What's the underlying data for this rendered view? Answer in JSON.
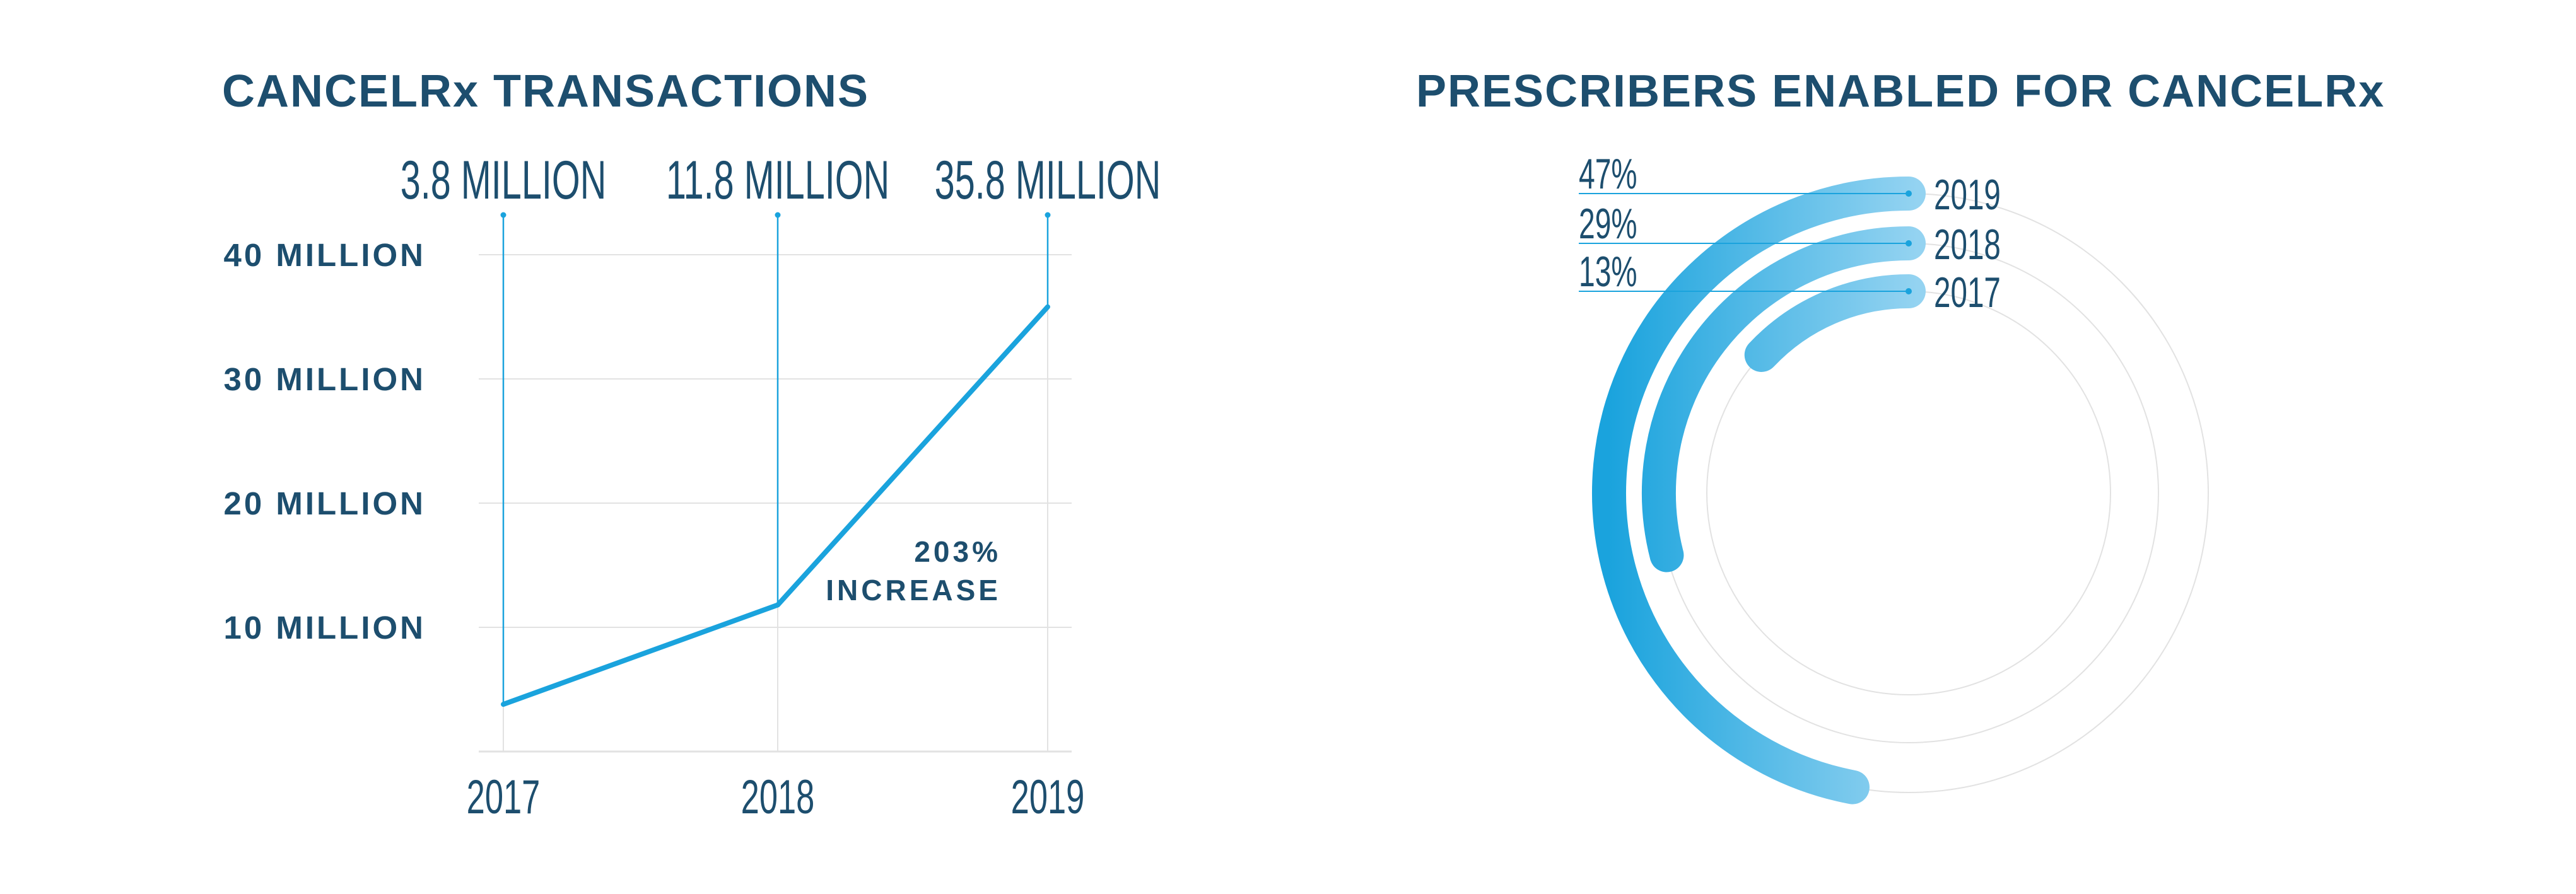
{
  "colors": {
    "text": "#1d4e6e",
    "accent": "#1aa3dd",
    "accent_light": "#94d3f1",
    "grid": "#e2e2e2"
  },
  "chart_data": [
    {
      "type": "line",
      "title": "CANCELRx TRANSACTIONS",
      "categories": [
        "2017",
        "2018",
        "2019"
      ],
      "values": [
        3.8,
        11.8,
        35.8
      ],
      "value_labels": [
        "3.8 MILLION",
        "11.8 MILLION",
        "35.8 MILLION"
      ],
      "ytick_values": [
        10,
        20,
        30,
        40
      ],
      "ytick_labels": [
        "10 MILLION",
        "20 MILLION",
        "30 MILLION",
        "40 MILLION"
      ],
      "ylim": [
        0,
        40
      ],
      "grid": true,
      "annotation": {
        "line1": "203%",
        "line2": "INCREASE"
      }
    },
    {
      "type": "radial-bar",
      "title": "PRESCRIBERS ENABLED FOR CANCELRx",
      "categories": [
        "2019",
        "2018",
        "2017"
      ],
      "values": [
        47,
        29,
        13
      ],
      "value_labels": [
        "47%",
        "29%",
        "13%"
      ],
      "max": 100
    }
  ]
}
